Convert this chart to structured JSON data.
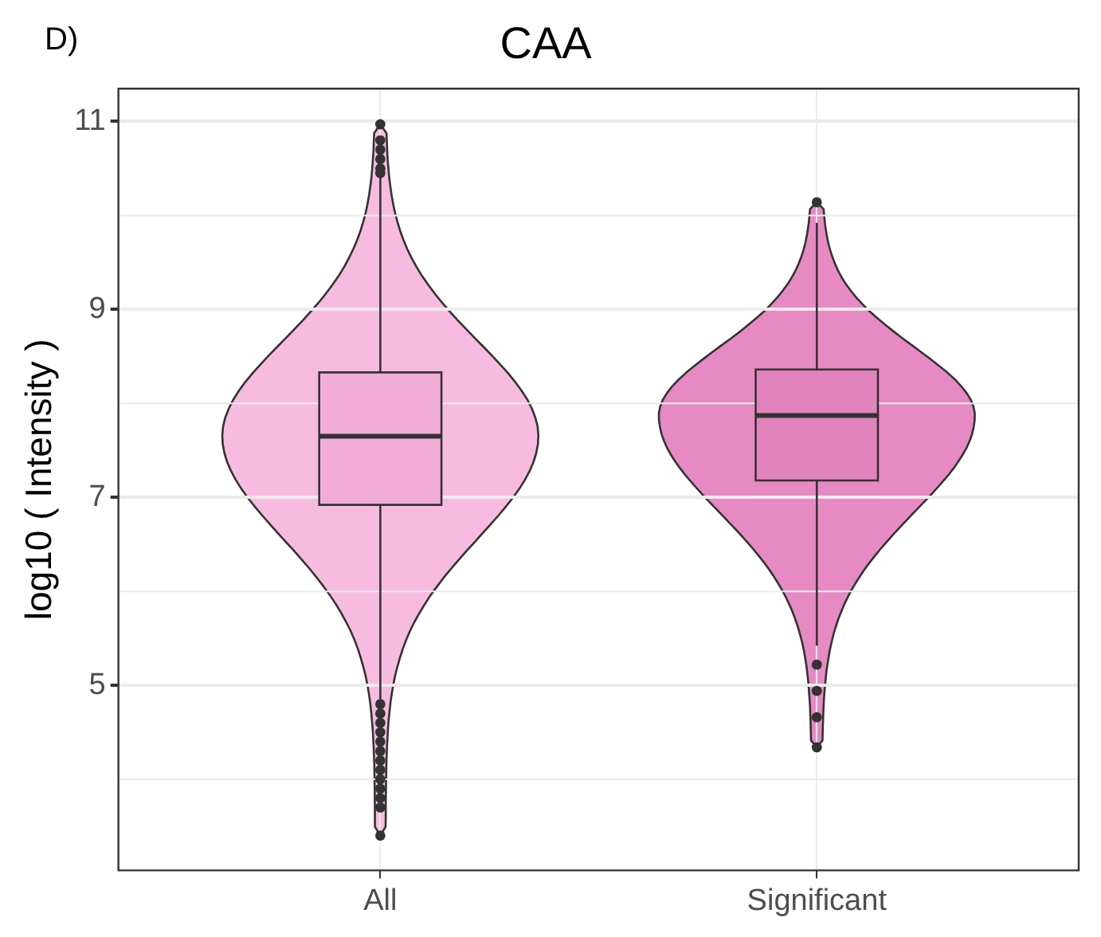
{
  "chart_data": {
    "type": "box",
    "title": "CAA",
    "ylabel": "log10 ( Intensity )",
    "annotations": [
      "D)"
    ],
    "categories": [
      "All",
      "Significant"
    ],
    "ylim": [
      3.03,
      11.35
    ],
    "yticks": [
      5,
      7,
      9,
      11
    ],
    "grid": true,
    "colors": [
      "#f8bbe0",
      "#e78ac3"
    ],
    "boxes": [
      {
        "low": 4.85,
        "q1": 6.92,
        "median": 7.65,
        "q3": 8.33,
        "high": 10.4,
        "outliers": [
          10.97,
          10.8,
          10.7,
          10.6,
          10.5,
          10.45,
          4.8,
          4.7,
          4.6,
          4.5,
          4.4,
          4.3,
          4.2,
          4.1,
          4.0,
          3.9,
          3.8,
          3.7,
          3.4
        ]
      },
      {
        "low": 5.42,
        "q1": 7.18,
        "median": 7.87,
        "q3": 8.36,
        "high": 9.92,
        "outliers": [
          10.14,
          5.22,
          4.94,
          4.66,
          4.34
        ]
      }
    ]
  }
}
